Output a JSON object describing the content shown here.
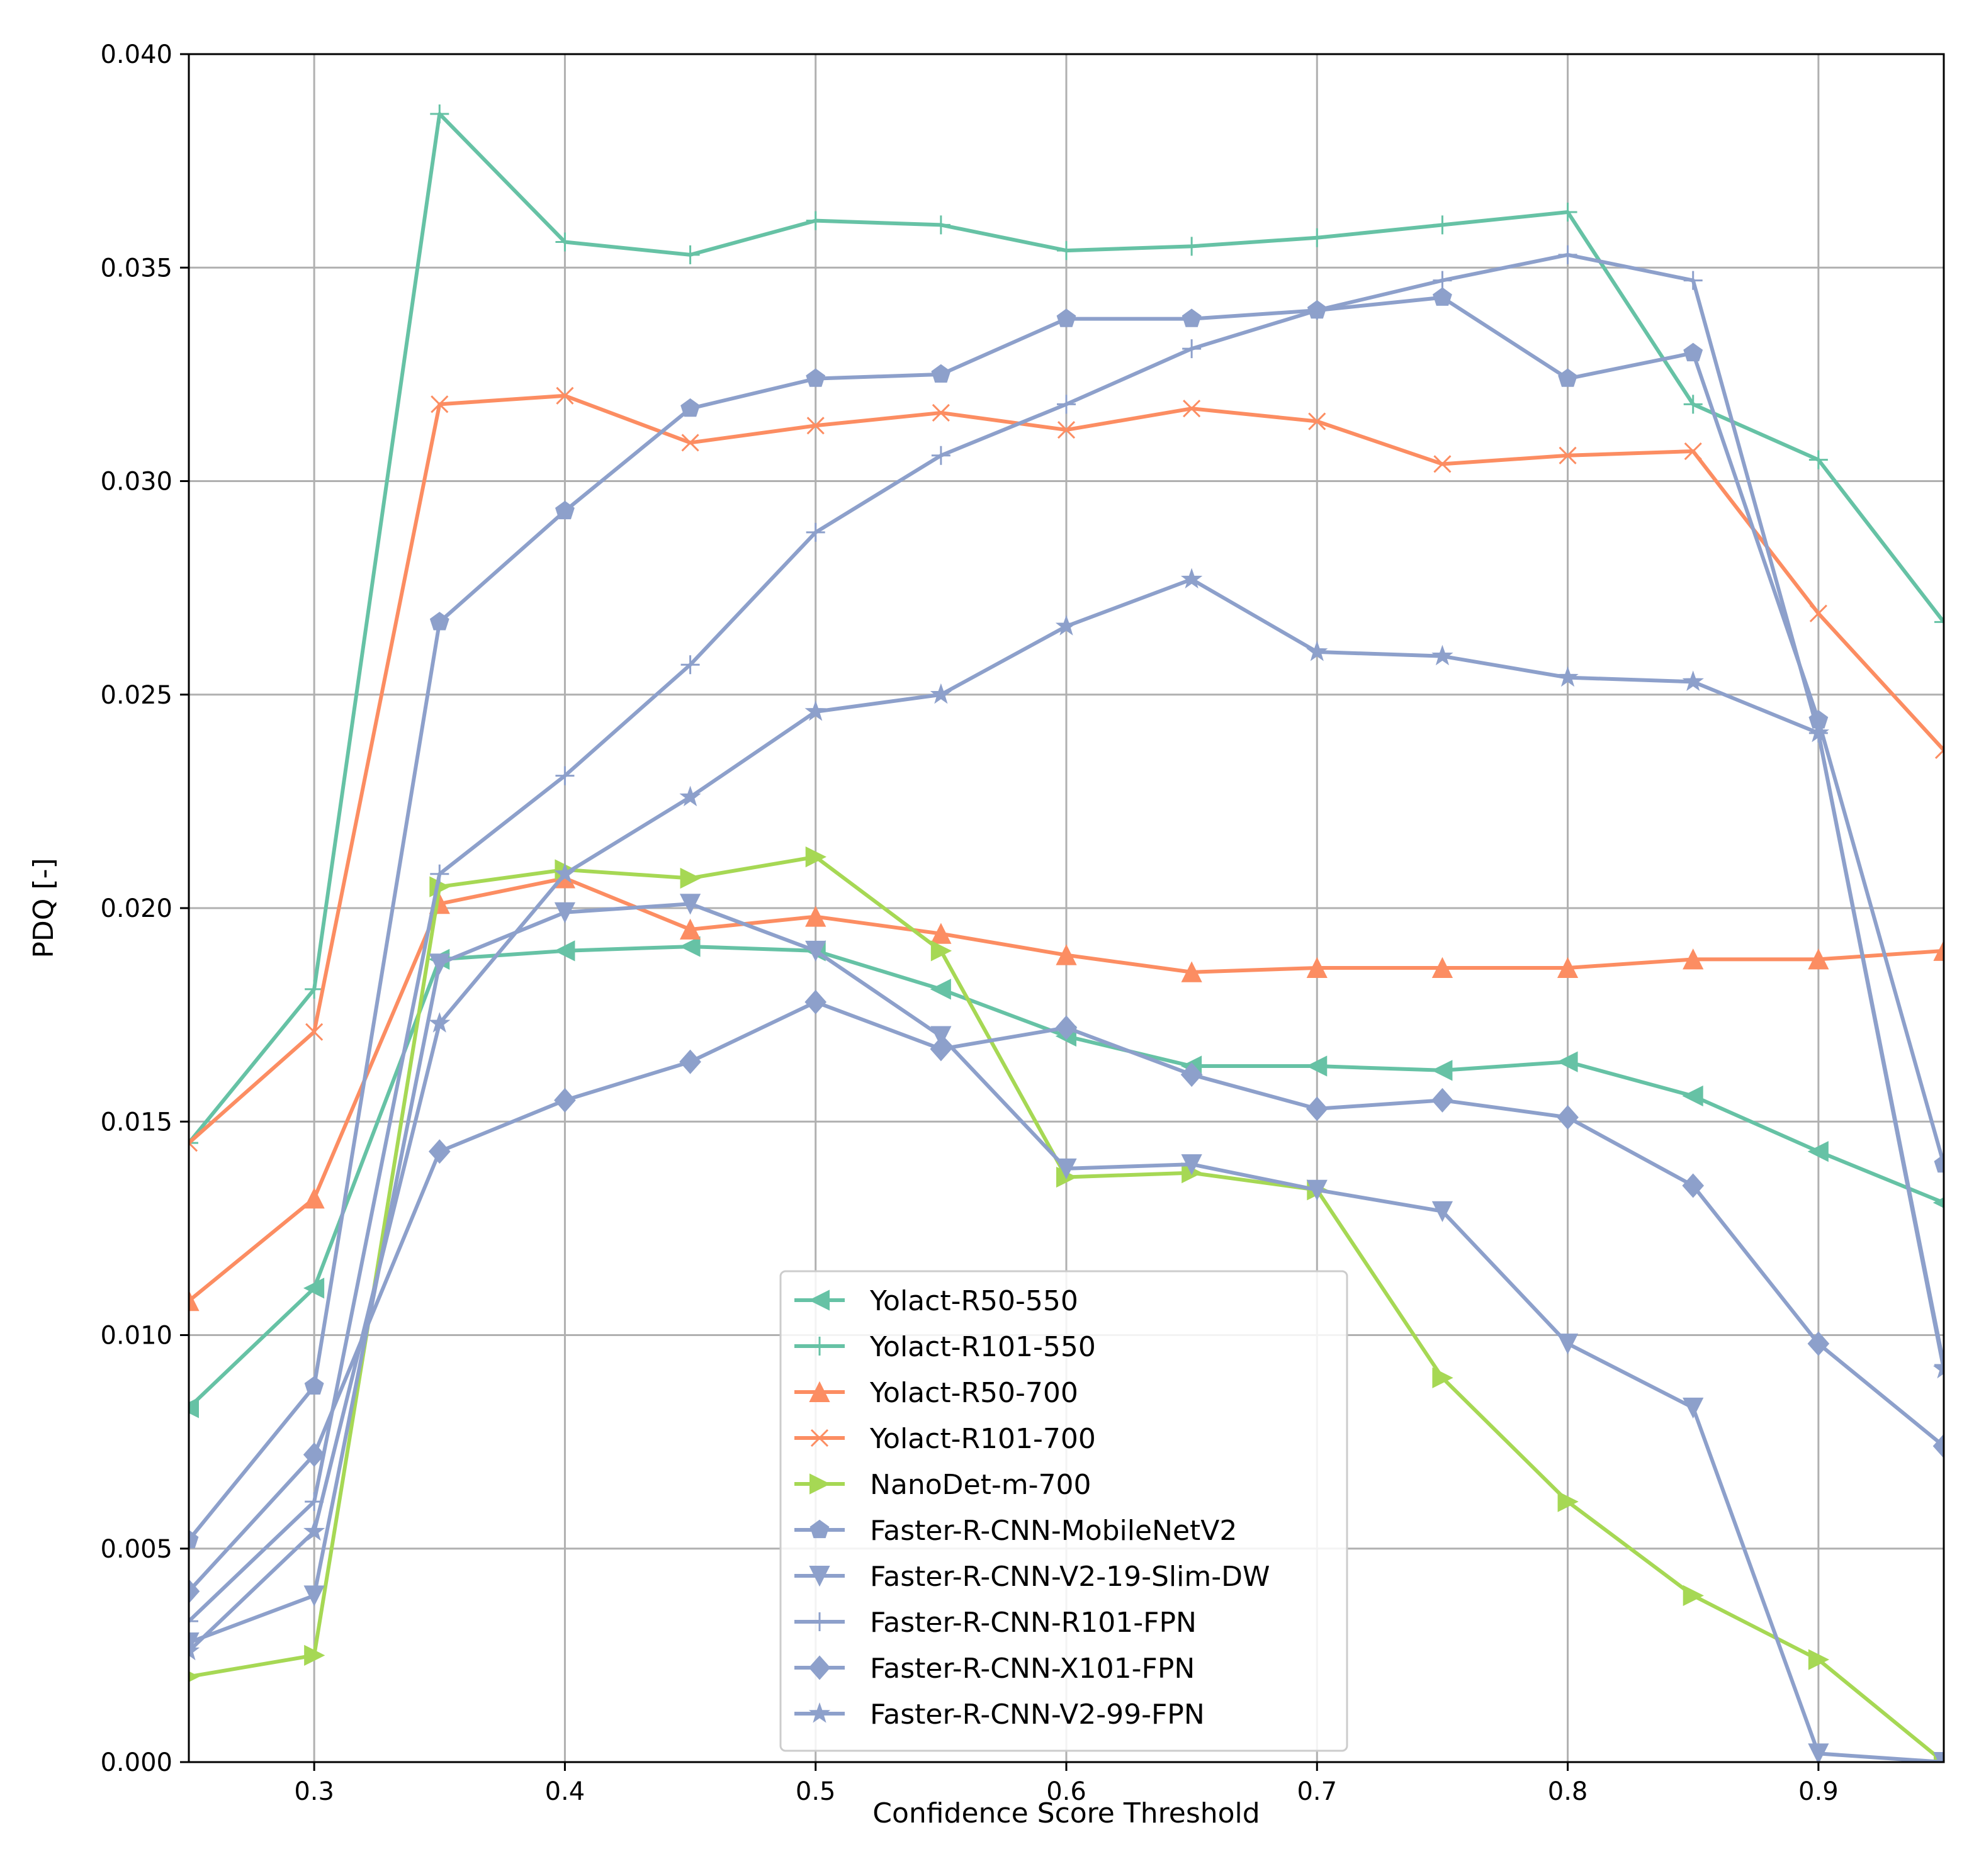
{
  "chart_data": {
    "type": "line",
    "title": "",
    "xlabel": "Confidence Score Threshold",
    "ylabel": "PDQ [-]",
    "xlim": [
      0.25,
      0.95
    ],
    "ylim": [
      0.0,
      0.04
    ],
    "grid": true,
    "legend_position": "lower-center",
    "x": [
      0.25,
      0.3,
      0.35,
      0.4,
      0.45,
      0.5,
      0.55,
      0.6,
      0.65,
      0.7,
      0.75,
      0.8,
      0.85,
      0.9,
      0.95
    ],
    "xticks": [
      "0.3",
      "0.4",
      "0.5",
      "0.6",
      "0.7",
      "0.8",
      "0.9"
    ],
    "xtick_values": [
      0.3,
      0.4,
      0.5,
      0.6,
      0.7,
      0.8,
      0.9
    ],
    "yticks": [
      "0.000",
      "0.005",
      "0.010",
      "0.015",
      "0.020",
      "0.025",
      "0.030",
      "0.035",
      "0.040"
    ],
    "ytick_values": [
      0.0,
      0.005,
      0.01,
      0.015,
      0.02,
      0.025,
      0.03,
      0.035,
      0.04
    ],
    "series": [
      {
        "name": "Yolact-R50-550",
        "color": "#66c2a5",
        "marker": "triangle-left",
        "values": [
          0.0083,
          0.0111,
          0.0188,
          0.019,
          0.0191,
          0.019,
          0.0181,
          0.017,
          0.0163,
          0.0163,
          0.0162,
          0.0164,
          0.0156,
          0.0143,
          0.0131
        ]
      },
      {
        "name": "Yolact-R101-550",
        "color": "#66c2a5",
        "marker": "plus",
        "values": [
          0.0145,
          0.0181,
          0.0386,
          0.0356,
          0.0353,
          0.0361,
          0.036,
          0.0354,
          0.0355,
          0.0357,
          0.036,
          0.0363,
          0.0318,
          0.0305,
          0.0267
        ]
      },
      {
        "name": "Yolact-R50-700",
        "color": "#fc8d62",
        "marker": "triangle-up",
        "values": [
          0.0108,
          0.0132,
          0.0201,
          0.0207,
          0.0195,
          0.0198,
          0.0194,
          0.0189,
          0.0185,
          0.0186,
          0.0186,
          0.0186,
          0.0188,
          0.0188,
          0.019
        ]
      },
      {
        "name": "Yolact-R101-700",
        "color": "#fc8d62",
        "marker": "x",
        "values": [
          0.0145,
          0.0171,
          0.0318,
          0.032,
          0.0309,
          0.0313,
          0.0316,
          0.0312,
          0.0317,
          0.0314,
          0.0304,
          0.0306,
          0.0307,
          0.0269,
          0.0237
        ]
      },
      {
        "name": "NanoDet-m-700",
        "color": "#a6d854",
        "marker": "triangle-right",
        "values": [
          0.002,
          0.0025,
          0.0205,
          0.0209,
          0.0207,
          0.0212,
          0.019,
          0.0137,
          0.0138,
          0.0134,
          0.009,
          0.0061,
          0.0039,
          0.0024,
          0.0
        ]
      },
      {
        "name": "Faster-R-CNN-MobileNetV2",
        "color": "#8da0cb",
        "marker": "pentagon",
        "values": [
          0.0052,
          0.0088,
          0.0267,
          0.0293,
          0.0317,
          0.0324,
          0.0325,
          0.0338,
          0.0338,
          0.034,
          0.0343,
          0.0324,
          0.033,
          0.0244,
          0.014
        ]
      },
      {
        "name": "Faster-R-CNN-V2-19-Slim-DW",
        "color": "#8da0cb",
        "marker": "triangle-down",
        "values": [
          0.0028,
          0.0039,
          0.0187,
          0.0199,
          0.0201,
          0.019,
          0.017,
          0.0139,
          0.014,
          0.0134,
          0.0129,
          0.0098,
          0.0083,
          0.0002,
          0.0
        ]
      },
      {
        "name": "Faster-R-CNN-R101-FPN",
        "color": "#8da0cb",
        "marker": "plus",
        "values": [
          0.0033,
          0.0061,
          0.0208,
          0.0231,
          0.0257,
          0.0288,
          0.0306,
          0.0318,
          0.0331,
          0.034,
          0.0347,
          0.0353,
          0.0347,
          0.0241,
          0.0093
        ]
      },
      {
        "name": "Faster-R-CNN-X101-FPN",
        "color": "#8da0cb",
        "marker": "diamond",
        "values": [
          0.004,
          0.0072,
          0.0143,
          0.0155,
          0.0164,
          0.0178,
          0.0167,
          0.0172,
          0.0161,
          0.0153,
          0.0155,
          0.0151,
          0.0135,
          0.0098,
          0.0074
        ]
      },
      {
        "name": "Faster-R-CNN-V2-99-FPN",
        "color": "#8da0cb",
        "marker": "star",
        "values": [
          0.0026,
          0.0054,
          0.0173,
          0.0208,
          0.0226,
          0.0246,
          0.025,
          0.0266,
          0.0277,
          0.026,
          0.0259,
          0.0254,
          0.0253,
          0.0241,
          0.0092
        ]
      }
    ]
  }
}
